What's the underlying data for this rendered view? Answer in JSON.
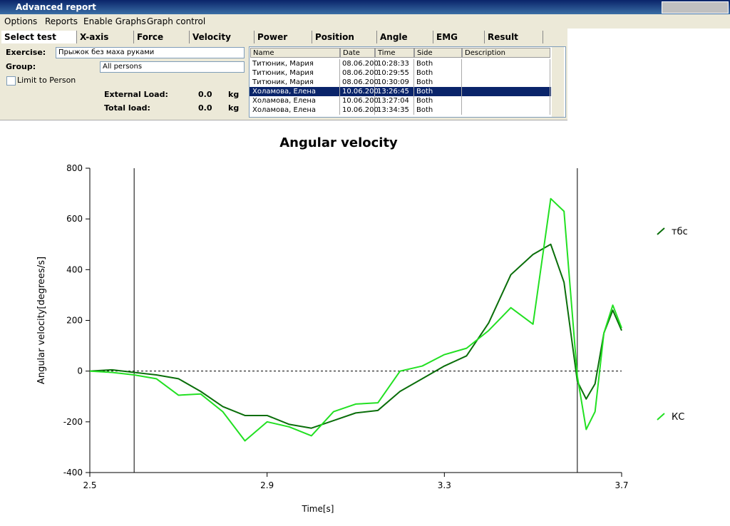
{
  "window": {
    "title": "Advanced report"
  },
  "menu": [
    "Options",
    "Reports",
    "Enable Graphs",
    "Graph control"
  ],
  "tabs": [
    "Select test",
    "X-axis",
    "Force",
    "Velocity",
    "Power",
    "Position",
    "Angle",
    "EMG",
    "Result"
  ],
  "form": {
    "exercise": {
      "label": "Exercise:",
      "value": "Прыжок без маха руками"
    },
    "group": {
      "label": "Group:",
      "value": "All persons"
    },
    "limit": {
      "label": "Limit to Person"
    },
    "external_load": {
      "label": "External Load:",
      "value": "0.0",
      "unit": "kg"
    },
    "total_load": {
      "label": "Total load:",
      "value": "0.0",
      "unit": "kg"
    }
  },
  "table": {
    "columns": [
      "Name",
      "Date",
      "Time",
      "Side",
      "Description"
    ],
    "rows": [
      [
        "Титюник, Мария",
        "08.06.200",
        "10:28:33",
        "Both"
      ],
      [
        "Титюник, Мария",
        "08.06.200",
        "10:29:55",
        "Both"
      ],
      [
        "Титюник, Мария",
        "08.06.200",
        "10:30:09",
        "Both"
      ],
      [
        "Холамова, Елена",
        "10.06.200",
        "13:26:45",
        "Both"
      ],
      [
        "Холамова, Елена",
        "10.06.200",
        "13:27:04",
        "Both"
      ],
      [
        "Холамова, Елена",
        "10.06.200",
        "13:34:35",
        "Both"
      ]
    ],
    "selected_row": 3
  },
  "chart_data": {
    "type": "line",
    "title": "Angular velocity",
    "xlabel": "Time[s]",
    "ylabel": "Angular velocity[degrees/s]",
    "xlim": [
      2.5,
      3.7
    ],
    "ylim": [
      -400,
      800
    ],
    "xticks": [
      2.5,
      2.9,
      3.3,
      3.7
    ],
    "yticks": [
      -400,
      -200,
      0,
      200,
      400,
      600,
      800
    ],
    "markers": [
      2.6,
      3.6
    ],
    "zero_line": true,
    "x": [
      2.5,
      2.55,
      2.6,
      2.65,
      2.7,
      2.75,
      2.8,
      2.85,
      2.9,
      2.95,
      3.0,
      3.05,
      3.1,
      3.15,
      3.2,
      3.25,
      3.3,
      3.35,
      3.4,
      3.45,
      3.5,
      3.54,
      3.57,
      3.6,
      3.62,
      3.64,
      3.66,
      3.68,
      3.7
    ],
    "series": [
      {
        "name": "тбс",
        "color": "#0a6e0a",
        "values": [
          0,
          5,
          -5,
          -15,
          -30,
          -80,
          -140,
          -175,
          -175,
          -210,
          -225,
          -195,
          -165,
          -155,
          -80,
          -30,
          20,
          60,
          190,
          380,
          460,
          500,
          350,
          -40,
          -110,
          -50,
          150,
          240,
          160
        ]
      },
      {
        "name": "КС",
        "color": "#22e022",
        "values": [
          0,
          -5,
          -15,
          -30,
          -95,
          -90,
          -160,
          -275,
          -200,
          -220,
          -255,
          -160,
          -130,
          -125,
          0,
          20,
          65,
          90,
          160,
          250,
          185,
          680,
          630,
          -20,
          -230,
          -160,
          150,
          260,
          170
        ]
      }
    ]
  }
}
